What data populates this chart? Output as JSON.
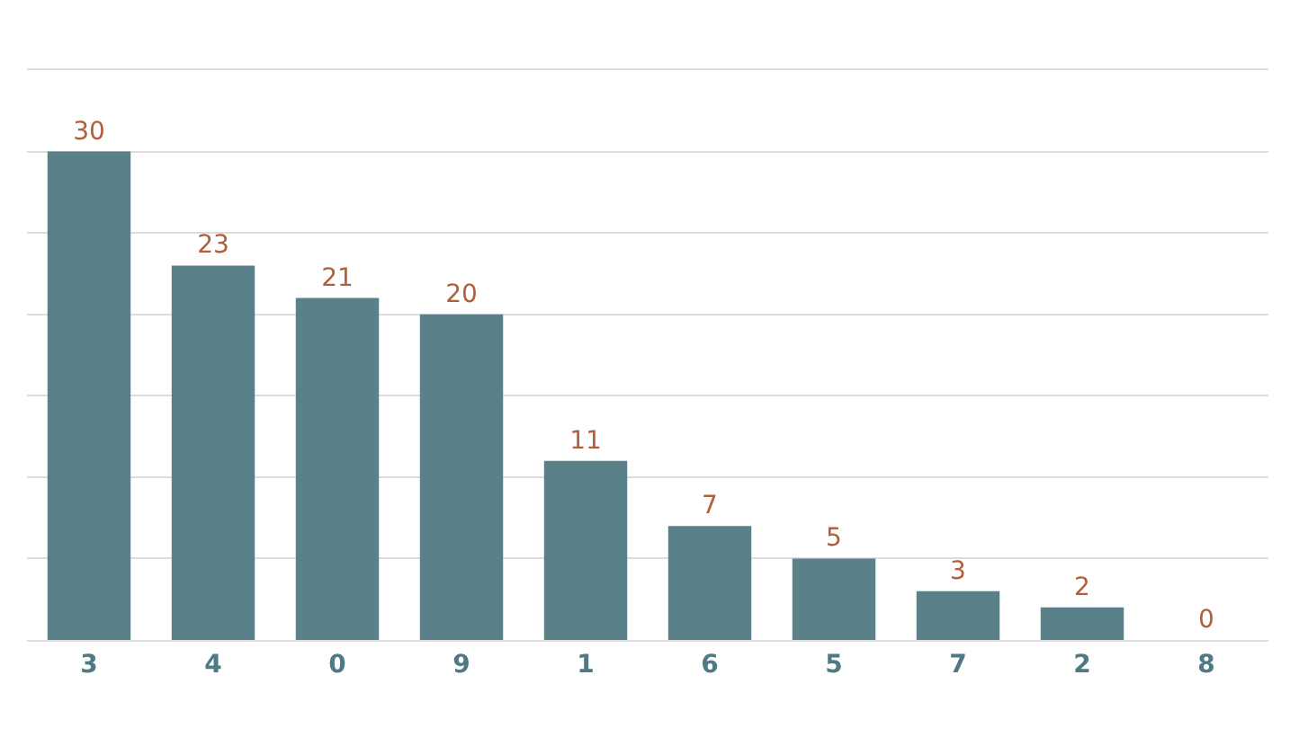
{
  "chart_data": {
    "type": "bar",
    "categories": [
      "3",
      "4",
      "0",
      "9",
      "1",
      "6",
      "5",
      "7",
      "2",
      "8"
    ],
    "values": [
      30,
      23,
      21,
      20,
      11,
      7,
      5,
      3,
      2,
      0
    ],
    "color": "#5a8189",
    "ylim": [
      0,
      35
    ],
    "yticks": [
      {
        "value": 0,
        "label": null
      },
      {
        "value": 5,
        "label": null
      },
      {
        "value": 10,
        "label": null
      },
      {
        "value": 15,
        "label": null
      },
      {
        "value": 20,
        "label": null
      },
      {
        "value": 25,
        "label": null
      },
      {
        "value": 30,
        "label": null
      },
      {
        "value": 35,
        "label": null
      }
    ],
    "grid": "y",
    "data_labels": true,
    "tick_labels": "x"
  }
}
